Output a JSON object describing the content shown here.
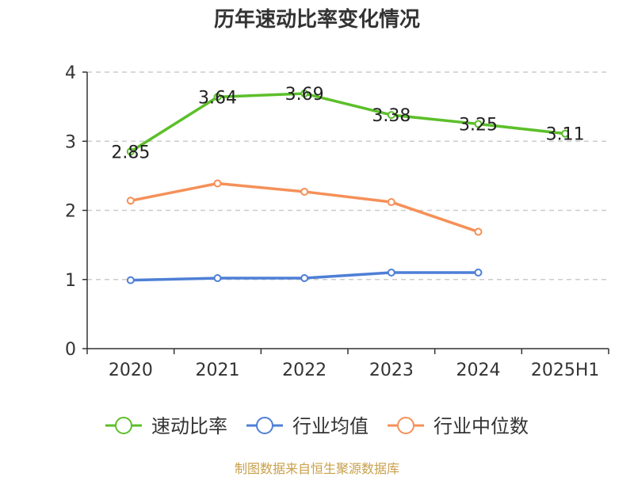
{
  "title": "历年速动比率变化情况",
  "source_note": "制图数据来自恒生聚源数据库",
  "chart_data": {
    "type": "line",
    "title": "历年速动比率变化情况",
    "categories": [
      "2020",
      "2021",
      "2022",
      "2023",
      "2024",
      "2025H1"
    ],
    "ylim": [
      0,
      4
    ],
    "yticks": [
      0,
      1,
      2,
      3,
      4
    ],
    "grid": true,
    "legend_position": "bottom",
    "series": [
      {
        "name": "速动比率",
        "color": "#5cbf2a",
        "values": [
          2.85,
          3.64,
          3.69,
          3.38,
          3.25,
          3.11
        ],
        "labels": true
      },
      {
        "name": "行业均值",
        "color": "#4e7fd6",
        "values": [
          0.99,
          1.02,
          1.02,
          1.1,
          1.1,
          null
        ],
        "labels": false
      },
      {
        "name": "行业中位数",
        "color": "#f59058",
        "values": [
          2.14,
          2.39,
          2.27,
          2.12,
          1.69,
          null
        ],
        "labels": false
      }
    ]
  }
}
